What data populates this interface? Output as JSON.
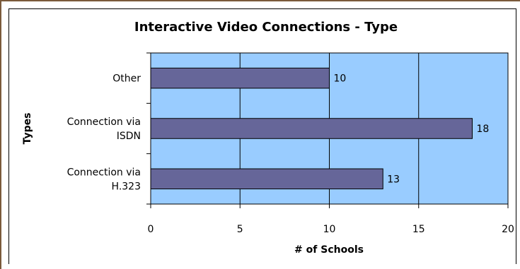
{
  "chart_data": {
    "type": "bar",
    "orientation": "horizontal",
    "title": "Interactive Video Connections - Type",
    "xlabel": "# of Schools",
    "ylabel": "Types",
    "categories": [
      [
        "Other"
      ],
      [
        "Connection via",
        "ISDN"
      ],
      [
        "Connection via",
        "H.323"
      ]
    ],
    "values": [
      10,
      18,
      13
    ],
    "data_labels": [
      "10",
      "18",
      "13"
    ],
    "xlim": [
      0,
      20
    ],
    "xticks": [
      "0",
      "5",
      "10",
      "15",
      "20"
    ],
    "grid": true,
    "legend": "none",
    "colors": {
      "plot_bg": "#99ccff",
      "bar_fill": "#666699",
      "bar_stroke": "#000000",
      "grid": "#000000"
    }
  }
}
